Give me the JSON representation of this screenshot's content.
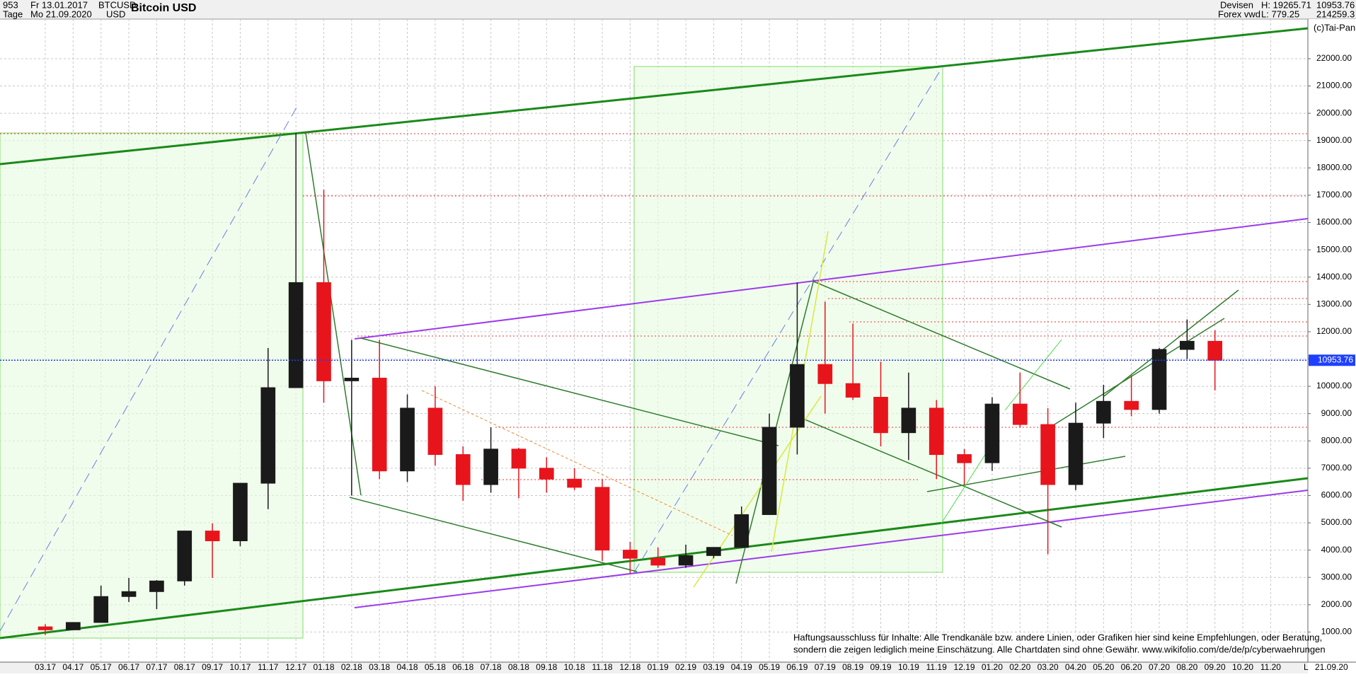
{
  "header": {
    "count": "953",
    "period": "Tage",
    "from": "Fr 13.01.2017",
    "to": "Mo 21.09.2020",
    "symbol": "BTCUSD",
    "currency": "USD",
    "market": "Devisen",
    "source": "Forex vwd",
    "high": "H: 19265.71",
    "low": "L: 779.25",
    "volume": "214259.3",
    "copyright": "(c)Tai-Pan"
  },
  "disclaimer": [
    "Haftungsausschluss für Inhalte: Alle Trendkanäle bzw. andere Linien, oder Grafiken hier sind keine Empfehlungen, oder Beratung,",
    "sondern die zeigen lediglich meine  Einschätzung. Alle Chartdaten sind ohne Gewähr.  www.wikifolio.com/de/de/p/cyberwaehrungen"
  ],
  "footer": {
    "date": "21.09.20",
    "scale": "L"
  },
  "chart_data": {
    "type": "candlestick",
    "title": "Bitcoin USD",
    "categories": [
      "03.17",
      "04.17",
      "05.17",
      "06.17",
      "07.17",
      "08.17",
      "09.17",
      "10.17",
      "11.17",
      "12.17",
      "01.18",
      "02.18",
      "03.18",
      "04.18",
      "05.18",
      "06.18",
      "07.18",
      "08.18",
      "09.18",
      "10.18",
      "11.18",
      "12.18",
      "01.19",
      "02.19",
      "03.19",
      "04.19",
      "05.19",
      "06.19",
      "07.19",
      "08.19",
      "09.19",
      "10.19",
      "11.19",
      "12.19",
      "01.20",
      "02.20",
      "03.20",
      "04.20",
      "05.20",
      "06.20",
      "07.20",
      "08.20",
      "09.20",
      "10.20",
      "11.20"
    ],
    "open": [
      1190,
      1080,
      1350,
      2300,
      2480,
      2870,
      4700,
      4340,
      6450,
      9950,
      13800,
      10200,
      10300,
      6900,
      9200,
      7500,
      6400,
      7700,
      7000,
      6600,
      6300,
      4000,
      3700,
      3450,
      3800,
      4100,
      5300,
      8500,
      10800,
      10100,
      9600,
      8300,
      9200,
      7500,
      7200,
      9350,
      8600,
      6400,
      8650,
      9450,
      9150,
      11350,
      11650,
      null,
      null
    ],
    "high": [
      1290,
      1350,
      2700,
      2980,
      2900,
      4700,
      4980,
      6450,
      11400,
      19265.71,
      17200,
      11700,
      11700,
      9700,
      10000,
      7800,
      8500,
      7750,
      7400,
      7000,
      6600,
      4300,
      4100,
      4200,
      4100,
      5600,
      9000,
      13800,
      13100,
      12300,
      10900,
      10500,
      9500,
      7700,
      9600,
      10500,
      9200,
      9400,
      10050,
      10400,
      11400,
      12450,
      12050,
      null,
      null
    ],
    "low": [
      890,
      1080,
      1350,
      2100,
      1840,
      2700,
      2980,
      4140,
      5500,
      9950,
      9400,
      6000,
      6600,
      6500,
      7100,
      5800,
      6100,
      5900,
      6100,
      6200,
      3600,
      3150,
      3350,
      3350,
      3700,
      4100,
      5300,
      7500,
      9000,
      9500,
      7800,
      7300,
      6600,
      6400,
      6900,
      8500,
      3850,
      6200,
      8100,
      8900,
      9000,
      11000,
      9850,
      null,
      null
    ],
    "close": [
      1080,
      1350,
      2300,
      2480,
      2870,
      4700,
      4340,
      6450,
      9950,
      13800,
      10200,
      10300,
      6900,
      9200,
      7500,
      6400,
      7700,
      7000,
      6600,
      6300,
      4000,
      3700,
      3450,
      3800,
      4100,
      5300,
      8500,
      10800,
      10100,
      9600,
      8300,
      9200,
      7500,
      7200,
      9350,
      8600,
      6400,
      8650,
      9450,
      9150,
      11350,
      11650,
      10953.76,
      null,
      null
    ],
    "up_color": "#1a1a1a",
    "down_color": "#e8141c",
    "last_color": "#1f3fff",
    "ylim": [
      0,
      23450
    ],
    "yticks": [
      {
        "value": 1000,
        "label": "1000.00"
      },
      {
        "value": 2000,
        "label": "2000.00"
      },
      {
        "value": 3000,
        "label": "3000.00"
      },
      {
        "value": 4000,
        "label": "4000.00"
      },
      {
        "value": 5000,
        "label": "5000.00"
      },
      {
        "value": 6000,
        "label": "6000.00"
      },
      {
        "value": 7000,
        "label": "7000.00"
      },
      {
        "value": 8000,
        "label": "8000.00"
      },
      {
        "value": 9000,
        "label": "9000.00"
      },
      {
        "value": 10000,
        "label": "10000.00"
      },
      {
        "value": 11000,
        "label": "11000.00"
      },
      {
        "value": 12000,
        "label": "12000.00"
      },
      {
        "value": 13000,
        "label": "13000.00"
      },
      {
        "value": 14000,
        "label": "14000.00"
      },
      {
        "value": 15000,
        "label": "15000.00"
      },
      {
        "value": 16000,
        "label": "16000.00"
      },
      {
        "value": 17000,
        "label": "17000.00"
      },
      {
        "value": 18000,
        "label": "18000.00"
      },
      {
        "value": 19000,
        "label": "19000.00"
      },
      {
        "value": 20000,
        "label": "20000.00"
      },
      {
        "value": 21000,
        "label": "21000.00"
      },
      {
        "value": 22000,
        "label": "22000.00"
      }
    ],
    "grid": true
  }
}
